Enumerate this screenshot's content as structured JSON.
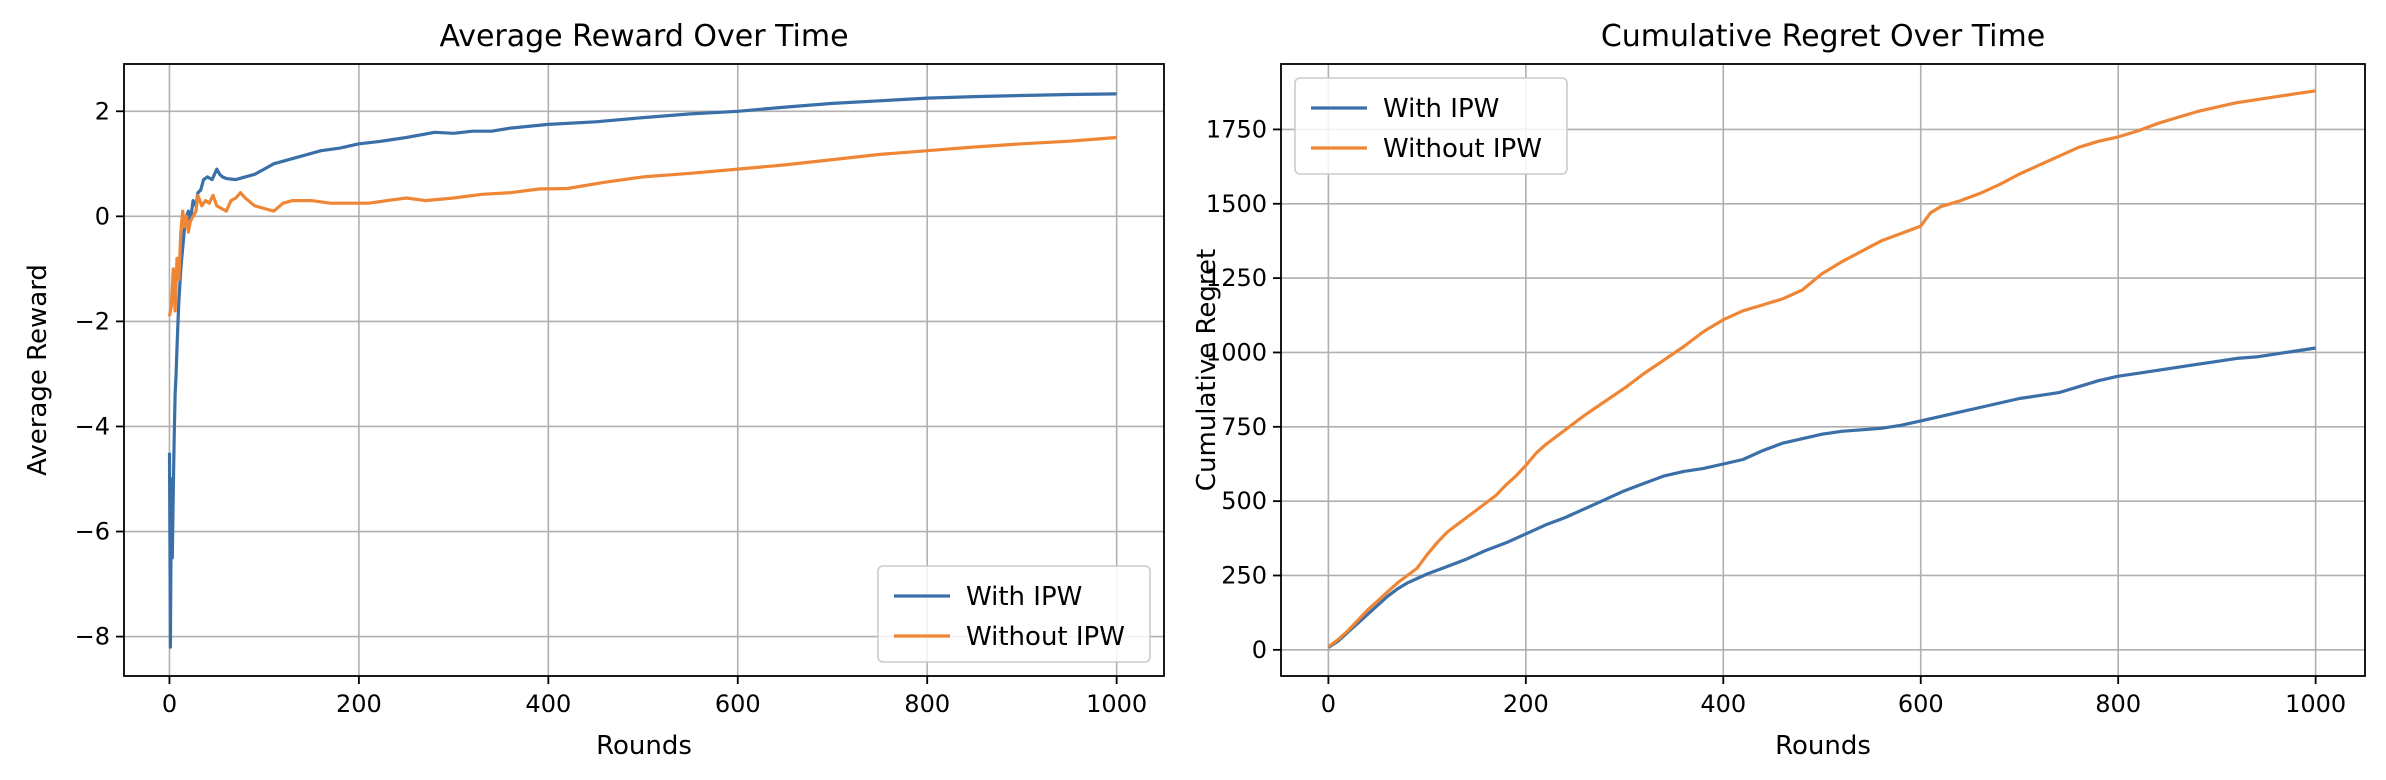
{
  "chart_data": [
    {
      "type": "line",
      "title": "Average Reward Over Time",
      "xlabel": "Rounds",
      "ylabel": "Average Reward",
      "xlim": [
        -48,
        1050
      ],
      "ylim": [
        -8.75,
        2.9
      ],
      "xticks": [
        0,
        200,
        400,
        600,
        800,
        1000
      ],
      "yticks": [
        -8,
        -6,
        -4,
        -2,
        0,
        2
      ],
      "grid": true,
      "legend": "lower-right",
      "series": [
        {
          "name": "With IPW",
          "color": "#3a6fa8",
          "points": [
            [
              0,
              -4.5
            ],
            [
              1,
              -8.2
            ],
            [
              2,
              -5.0
            ],
            [
              3,
              -6.5
            ],
            [
              4,
              -5.2
            ],
            [
              5,
              -4.2
            ],
            [
              6,
              -3.4
            ],
            [
              7,
              -3.0
            ],
            [
              8,
              -2.5
            ],
            [
              9,
              -2.0
            ],
            [
              10,
              -1.6
            ],
            [
              12,
              -1.0
            ],
            [
              14,
              -0.6
            ],
            [
              16,
              -0.2
            ],
            [
              18,
              0.0
            ],
            [
              20,
              0.1
            ],
            [
              22,
              -0.1
            ],
            [
              25,
              0.3
            ],
            [
              28,
              0.2
            ],
            [
              30,
              0.45
            ],
            [
              33,
              0.5
            ],
            [
              36,
              0.7
            ],
            [
              40,
              0.75
            ],
            [
              45,
              0.7
            ],
            [
              50,
              0.9
            ],
            [
              53,
              0.8
            ],
            [
              56,
              0.75
            ],
            [
              60,
              0.72
            ],
            [
              70,
              0.7
            ],
            [
              80,
              0.75
            ],
            [
              90,
              0.8
            ],
            [
              100,
              0.9
            ],
            [
              110,
              1.0
            ],
            [
              120,
              1.05
            ],
            [
              140,
              1.15
            ],
            [
              160,
              1.25
            ],
            [
              180,
              1.3
            ],
            [
              200,
              1.38
            ],
            [
              220,
              1.42
            ],
            [
              250,
              1.5
            ],
            [
              280,
              1.6
            ],
            [
              300,
              1.58
            ],
            [
              320,
              1.62
            ],
            [
              340,
              1.62
            ],
            [
              360,
              1.68
            ],
            [
              400,
              1.75
            ],
            [
              450,
              1.8
            ],
            [
              500,
              1.88
            ],
            [
              550,
              1.95
            ],
            [
              600,
              2.0
            ],
            [
              650,
              2.08
            ],
            [
              700,
              2.15
            ],
            [
              750,
              2.2
            ],
            [
              800,
              2.25
            ],
            [
              850,
              2.28
            ],
            [
              900,
              2.3
            ],
            [
              950,
              2.32
            ],
            [
              1000,
              2.33
            ]
          ]
        },
        {
          "name": "Without IPW",
          "color": "#ef8636",
          "points": [
            [
              0,
              -1.9
            ],
            [
              2,
              -1.7
            ],
            [
              4,
              -1.0
            ],
            [
              6,
              -1.8
            ],
            [
              8,
              -0.8
            ],
            [
              10,
              -1.2
            ],
            [
              12,
              -0.3
            ],
            [
              14,
              0.1
            ],
            [
              16,
              -0.2
            ],
            [
              18,
              0.0
            ],
            [
              20,
              -0.3
            ],
            [
              22,
              -0.1
            ],
            [
              25,
              0.0
            ],
            [
              28,
              0.1
            ],
            [
              30,
              0.4
            ],
            [
              34,
              0.2
            ],
            [
              38,
              0.3
            ],
            [
              42,
              0.25
            ],
            [
              46,
              0.4
            ],
            [
              50,
              0.2
            ],
            [
              55,
              0.15
            ],
            [
              60,
              0.1
            ],
            [
              65,
              0.3
            ],
            [
              70,
              0.35
            ],
            [
              75,
              0.45
            ],
            [
              80,
              0.35
            ],
            [
              90,
              0.2
            ],
            [
              100,
              0.15
            ],
            [
              110,
              0.1
            ],
            [
              120,
              0.25
            ],
            [
              130,
              0.3
            ],
            [
              150,
              0.3
            ],
            [
              170,
              0.25
            ],
            [
              190,
              0.25
            ],
            [
              210,
              0.25
            ],
            [
              230,
              0.3
            ],
            [
              250,
              0.35
            ],
            [
              270,
              0.3
            ],
            [
              300,
              0.35
            ],
            [
              330,
              0.42
            ],
            [
              360,
              0.45
            ],
            [
              390,
              0.52
            ],
            [
              420,
              0.53
            ],
            [
              460,
              0.65
            ],
            [
              500,
              0.75
            ],
            [
              550,
              0.82
            ],
            [
              600,
              0.9
            ],
            [
              650,
              0.98
            ],
            [
              700,
              1.08
            ],
            [
              750,
              1.18
            ],
            [
              800,
              1.25
            ],
            [
              850,
              1.32
            ],
            [
              900,
              1.38
            ],
            [
              950,
              1.43
            ],
            [
              1000,
              1.5
            ]
          ]
        }
      ]
    },
    {
      "type": "line",
      "title": "Cumulative Regret Over Time",
      "xlabel": "Rounds",
      "ylabel": "Cumulative Regret",
      "xlim": [
        -48,
        1050
      ],
      "ylim": [
        -88,
        1970
      ],
      "xticks": [
        0,
        200,
        400,
        600,
        800,
        1000
      ],
      "yticks": [
        0,
        250,
        500,
        750,
        1000,
        1250,
        1500,
        1750
      ],
      "grid": true,
      "legend": "upper-left",
      "series": [
        {
          "name": "With IPW",
          "color": "#3a6fa8",
          "points": [
            [
              0,
              8
            ],
            [
              10,
              30
            ],
            [
              20,
              60
            ],
            [
              30,
              90
            ],
            [
              40,
              120
            ],
            [
              50,
              150
            ],
            [
              60,
              180
            ],
            [
              70,
              205
            ],
            [
              80,
              225
            ],
            [
              100,
              255
            ],
            [
              120,
              280
            ],
            [
              140,
              305
            ],
            [
              160,
              335
            ],
            [
              180,
              360
            ],
            [
              200,
              390
            ],
            [
              220,
              420
            ],
            [
              240,
              445
            ],
            [
              260,
              475
            ],
            [
              280,
              505
            ],
            [
              300,
              535
            ],
            [
              320,
              560
            ],
            [
              340,
              585
            ],
            [
              360,
              600
            ],
            [
              380,
              610
            ],
            [
              400,
              625
            ],
            [
              420,
              640
            ],
            [
              440,
              670
            ],
            [
              460,
              695
            ],
            [
              480,
              710
            ],
            [
              500,
              725
            ],
            [
              520,
              735
            ],
            [
              540,
              740
            ],
            [
              560,
              745
            ],
            [
              580,
              755
            ],
            [
              600,
              770
            ],
            [
              620,
              785
            ],
            [
              640,
              800
            ],
            [
              660,
              815
            ],
            [
              680,
              830
            ],
            [
              700,
              845
            ],
            [
              720,
              855
            ],
            [
              740,
              865
            ],
            [
              760,
              885
            ],
            [
              780,
              905
            ],
            [
              800,
              920
            ],
            [
              820,
              930
            ],
            [
              840,
              940
            ],
            [
              860,
              950
            ],
            [
              880,
              960
            ],
            [
              900,
              970
            ],
            [
              920,
              980
            ],
            [
              940,
              985
            ],
            [
              960,
              995
            ],
            [
              980,
              1005
            ],
            [
              1000,
              1015
            ]
          ]
        },
        {
          "name": "Without IPW",
          "color": "#ef8636",
          "points": [
            [
              0,
              10
            ],
            [
              10,
              35
            ],
            [
              20,
              65
            ],
            [
              30,
              100
            ],
            [
              40,
              135
            ],
            [
              50,
              165
            ],
            [
              60,
              195
            ],
            [
              70,
              225
            ],
            [
              80,
              250
            ],
            [
              90,
              275
            ],
            [
              100,
              320
            ],
            [
              110,
              360
            ],
            [
              120,
              395
            ],
            [
              130,
              420
            ],
            [
              140,
              445
            ],
            [
              150,
              470
            ],
            [
              160,
              495
            ],
            [
              170,
              520
            ],
            [
              180,
              555
            ],
            [
              190,
              585
            ],
            [
              200,
              620
            ],
            [
              210,
              660
            ],
            [
              220,
              690
            ],
            [
              240,
              740
            ],
            [
              260,
              790
            ],
            [
              280,
              835
            ],
            [
              300,
              880
            ],
            [
              320,
              930
            ],
            [
              340,
              975
            ],
            [
              360,
              1020
            ],
            [
              380,
              1070
            ],
            [
              400,
              1110
            ],
            [
              420,
              1140
            ],
            [
              440,
              1160
            ],
            [
              460,
              1180
            ],
            [
              480,
              1210
            ],
            [
              500,
              1265
            ],
            [
              520,
              1305
            ],
            [
              540,
              1340
            ],
            [
              560,
              1375
            ],
            [
              580,
              1400
            ],
            [
              600,
              1425
            ],
            [
              610,
              1470
            ],
            [
              620,
              1490
            ],
            [
              640,
              1510
            ],
            [
              660,
              1535
            ],
            [
              680,
              1565
            ],
            [
              700,
              1600
            ],
            [
              720,
              1630
            ],
            [
              740,
              1660
            ],
            [
              760,
              1690
            ],
            [
              780,
              1710
            ],
            [
              800,
              1725
            ],
            [
              820,
              1745
            ],
            [
              840,
              1770
            ],
            [
              860,
              1790
            ],
            [
              880,
              1810
            ],
            [
              900,
              1825
            ],
            [
              920,
              1840
            ],
            [
              940,
              1850
            ],
            [
              960,
              1860
            ],
            [
              980,
              1870
            ],
            [
              1000,
              1880
            ]
          ]
        }
      ]
    }
  ]
}
